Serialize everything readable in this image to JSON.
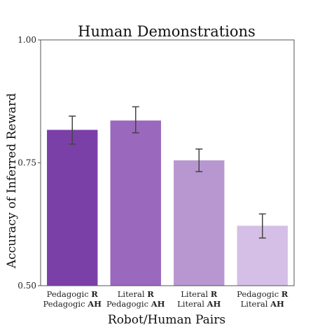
{
  "chart_data": {
    "type": "bar",
    "title": "Human Demonstrations",
    "xlabel": "Robot/Human Pairs",
    "ylabel": "Accuracy of Inferred Reward",
    "ylim": [
      0.5,
      1.0
    ],
    "yticks": [
      "0.50",
      "0.75",
      "1.00"
    ],
    "ytick_values": [
      0.5,
      0.75,
      1.0
    ],
    "grid": false,
    "categories": [
      {
        "line1": "Pedagogic",
        "line1_bold": "R",
        "line2": "Pedagogic",
        "line2_bold": "AH"
      },
      {
        "line1": "Literal",
        "line1_bold": "R",
        "line2": "Pedagogic",
        "line2_bold": "AH"
      },
      {
        "line1": "Literal",
        "line1_bold": "R",
        "line2": "Literal",
        "line2_bold": "AH"
      },
      {
        "line1": "Pedagogic",
        "line1_bold": "R",
        "line2": "Literal",
        "line2_bold": "AH"
      }
    ],
    "values": [
      0.817,
      0.836,
      0.755,
      0.622
    ],
    "error_low": [
      0.788,
      0.811,
      0.732,
      0.597
    ],
    "error_high": [
      0.845,
      0.864,
      0.778,
      0.646
    ],
    "colors": [
      "#7b3fa8",
      "#9a68bc",
      "#b897d1",
      "#d5bfe6"
    ],
    "error_color": "#444444"
  }
}
